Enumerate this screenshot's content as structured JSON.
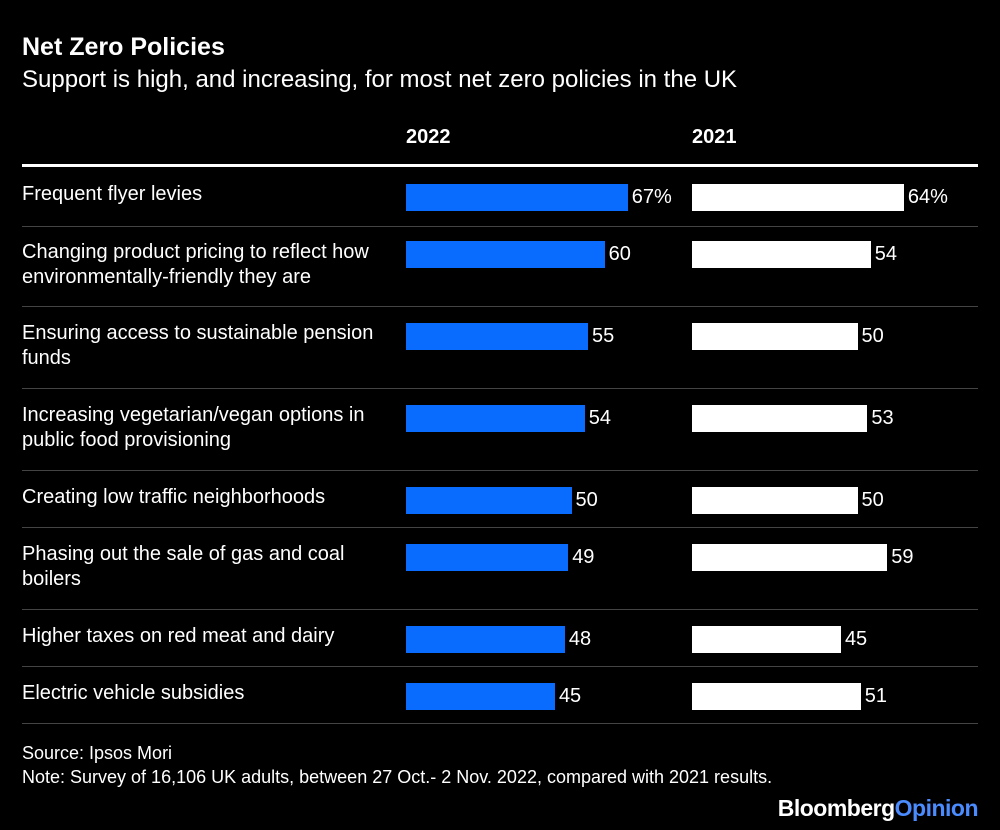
{
  "chart_data": {
    "type": "bar",
    "title": "Net Zero Policies",
    "subtitle": "Support is high, and increasing, for most net zero policies in the UK",
    "orientation": "horizontal",
    "categories": [
      "Frequent flyer levies",
      "Changing product pricing to reflect how environmentally-friendly they are",
      "Ensuring access to sustainable pension funds",
      "Increasing vegetarian/vegan options in public food provisioning",
      "Creating low traffic neighborhoods",
      "Phasing out the sale of gas and coal boilers",
      "Higher taxes on red meat and dairy",
      "Electric vehicle subsidies"
    ],
    "series": [
      {
        "name": "2022",
        "color": "#0a6cff",
        "values": [
          67,
          60,
          55,
          54,
          50,
          49,
          48,
          45
        ],
        "labels": [
          "67%",
          "60",
          "55",
          "54",
          "50",
          "49",
          "48",
          "45"
        ]
      },
      {
        "name": "2021",
        "color": "#ffffff",
        "values": [
          64,
          54,
          50,
          53,
          50,
          59,
          45,
          51
        ],
        "labels": [
          "64%",
          "54",
          "50",
          "53",
          "50",
          "59",
          "45",
          "51"
        ]
      }
    ],
    "xlim": [
      0,
      100
    ],
    "source": "Source: Ipsos Mori",
    "note": "Note: Survey of 16,106 UK adults, between 27 Oct.- 2 Nov. 2022, compared with 2021 results."
  },
  "brand": {
    "part1": "Bloomberg",
    "part2": "Opinion"
  }
}
